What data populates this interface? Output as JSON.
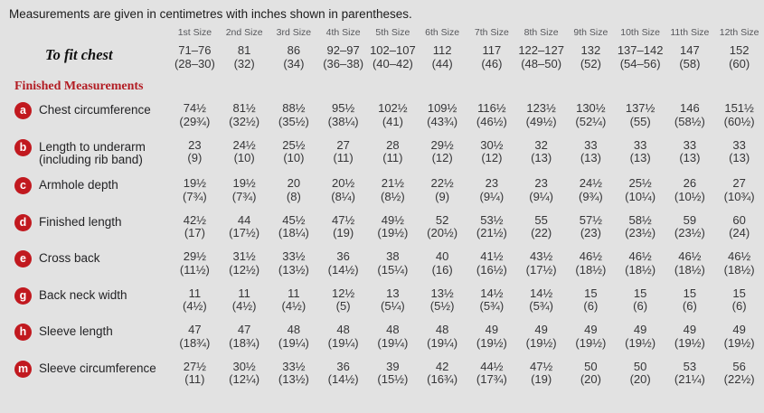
{
  "note": "Measurements are given in centimetres with inches shown in parentheses.",
  "section_heading": "Finished Measurements",
  "colors": {
    "background": "#e2e2e2",
    "accent_red": "#b21c23",
    "badge_red": "#c1191f",
    "body_text": "#353537",
    "header_gray": "#56575b"
  },
  "table": {
    "size_headers": [
      "1st Size",
      "2nd Size",
      "3rd Size",
      "4th Size",
      "5th Size",
      "6th Size",
      "7th Size",
      "8th Size",
      "9th Size",
      "10th Size",
      "11th Size",
      "12th Size"
    ],
    "to_fit_chest": {
      "label": "To fit chest",
      "cm": [
        "71–76",
        "81",
        "86",
        "92–97",
        "102–107",
        "112",
        "117",
        "122–127",
        "132",
        "137–142",
        "147",
        "152"
      ],
      "in": [
        "(28–30)",
        "(32)",
        "(34)",
        "(36–38)",
        "(40–42)",
        "(44)",
        "(46)",
        "(48–50)",
        "(52)",
        "(54–56)",
        "(58)",
        "(60)"
      ]
    },
    "rows": [
      {
        "badge": "a",
        "label": "Chest circumference",
        "label2": "",
        "cm": [
          "74½",
          "81½",
          "88½",
          "95½",
          "102½",
          "109½",
          "116½",
          "123½",
          "130½",
          "137½",
          "146",
          "151½"
        ],
        "in": [
          "(29¾)",
          "(32½)",
          "(35½)",
          "(38¼)",
          "(41)",
          "(43¾)",
          "(46½)",
          "(49½)",
          "(52¼)",
          "(55)",
          "(58½)",
          "(60½)"
        ]
      },
      {
        "badge": "b",
        "label": "Length to underarm",
        "label2": "(including rib band)",
        "cm": [
          "23",
          "24½",
          "25½",
          "27",
          "28",
          "29½",
          "30½",
          "32",
          "33",
          "33",
          "33",
          "33"
        ],
        "in": [
          "(9)",
          "(10)",
          "(10)",
          "(11)",
          "(11)",
          "(12)",
          "(12)",
          "(13)",
          "(13)",
          "(13)",
          "(13)",
          "(13)"
        ]
      },
      {
        "badge": "c",
        "label": "Armhole depth",
        "label2": "",
        "cm": [
          "19½",
          "19½",
          "20",
          "20½",
          "21½",
          "22½",
          "23",
          "23",
          "24½",
          "25½",
          "26",
          "27"
        ],
        "in": [
          "(7¾)",
          "(7¾)",
          "(8)",
          "(8¼)",
          "(8½)",
          "(9)",
          "(9¼)",
          "(9¼)",
          "(9¾)",
          "(10¼)",
          "(10½)",
          "(10¾)"
        ]
      },
      {
        "badge": "d",
        "label": "Finished length",
        "label2": "",
        "cm": [
          "42½",
          "44",
          "45½",
          "47½",
          "49½",
          "52",
          "53½",
          "55",
          "57½",
          "58½",
          "59",
          "60"
        ],
        "in": [
          "(17)",
          "(17½)",
          "(18¼)",
          "(19)",
          "(19½)",
          "(20½)",
          "(21½)",
          "(22)",
          "(23)",
          "(23½)",
          "(23½)",
          "(24)"
        ]
      },
      {
        "badge": "e",
        "label": "Cross back",
        "label2": "",
        "cm": [
          "29½",
          "31½",
          "33½",
          "36",
          "38",
          "40",
          "41½",
          "43½",
          "46½",
          "46½",
          "46½",
          "46½"
        ],
        "in": [
          "(11½)",
          "(12½)",
          "(13½)",
          "(14½)",
          "(15¼)",
          "(16)",
          "(16½)",
          "(17½)",
          "(18½)",
          "(18½)",
          "(18½)",
          "(18½)"
        ]
      },
      {
        "badge": "g",
        "label": "Back neck width",
        "label2": "",
        "cm": [
          "11",
          "11",
          "11",
          "12½",
          "13",
          "13½",
          "14½",
          "14½",
          "15",
          "15",
          "15",
          "15"
        ],
        "in": [
          "(4½)",
          "(4½)",
          "(4½)",
          "(5)",
          "(5¼)",
          "(5½)",
          "(5¾)",
          "(5¾)",
          "(6)",
          "(6)",
          "(6)",
          "(6)"
        ]
      },
      {
        "badge": "h",
        "label": "Sleeve length",
        "label2": "",
        "cm": [
          "47",
          "47",
          "48",
          "48",
          "48",
          "48",
          "49",
          "49",
          "49",
          "49",
          "49",
          "49"
        ],
        "in": [
          "(18¾)",
          "(18¾)",
          "(19¼)",
          "(19¼)",
          "(19¼)",
          "(19¼)",
          "(19½)",
          "(19½)",
          "(19½)",
          "(19½)",
          "(19½)",
          "(19½)"
        ]
      },
      {
        "badge": "m",
        "label": "Sleeve circumference",
        "label2": "",
        "cm": [
          "27½",
          "30½",
          "33½",
          "36",
          "39",
          "42",
          "44½",
          "47½",
          "50",
          "50",
          "53",
          "56"
        ],
        "in": [
          "(11)",
          "(12¼)",
          "(13½)",
          "(14½)",
          "(15½)",
          "(16¾)",
          "(17¾)",
          "(19)",
          "(20)",
          "(20)",
          "(21¼)",
          "(22½)"
        ]
      }
    ]
  }
}
